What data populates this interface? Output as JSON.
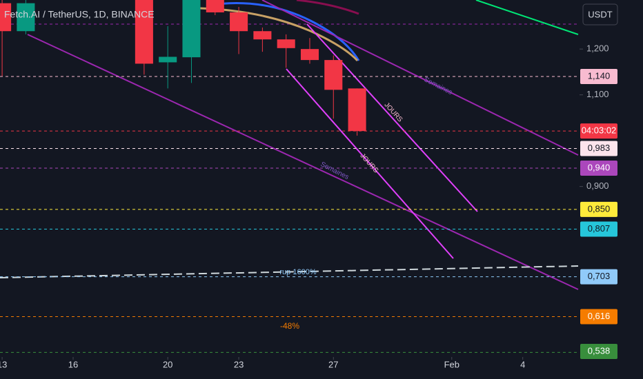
{
  "chart_data": {
    "type": "candlestick",
    "title": "Fetch.AI / TetherUS, 1D, BINANCE",
    "currency_button": "USDT",
    "up_color": "#089981",
    "down_color": "#f23645",
    "x": [
      0,
      1,
      6,
      7,
      8,
      9,
      10,
      11,
      12,
      13,
      14,
      15
    ],
    "open": [
      1.3,
      1.239,
      1.32,
      1.171,
      1.182,
      1.31,
      1.28,
      1.239,
      1.221,
      1.2,
      1.176,
      1.114
    ],
    "high": [
      1.32,
      1.32,
      1.33,
      1.25,
      1.33,
      1.32,
      1.292,
      1.247,
      1.232,
      1.224,
      1.186,
      1.114
    ],
    "low": [
      1.141,
      1.232,
      1.144,
      1.114,
      1.126,
      1.274,
      1.189,
      1.194,
      1.159,
      1.168,
      1.048,
      1.011
    ],
    "close": [
      1.239,
      1.3,
      1.168,
      1.183,
      1.31,
      1.28,
      1.239,
      1.221,
      1.202,
      1.176,
      1.111,
      1.021
    ],
    "xlim": [
      -0.09,
      24.4
    ],
    "xticks": [
      {
        "value": 0,
        "label": "13"
      },
      {
        "value": 3,
        "label": "16"
      },
      {
        "value": 7,
        "label": "20"
      },
      {
        "value": 10,
        "label": "23"
      },
      {
        "value": 14,
        "label": "27"
      },
      {
        "value": 19,
        "label": "Feb"
      },
      {
        "value": 22,
        "label": "4"
      }
    ],
    "ylim": [
      0.528,
      1.307
    ],
    "yticks": [
      {
        "value": 1.2,
        "label": "1,200"
      },
      {
        "value": 1.1,
        "label": "1,100"
      },
      {
        "value": 0.9,
        "label": "0,900"
      }
    ],
    "levels": [
      {
        "value": 1.14,
        "label": "1,140",
        "color": "#f8bbd0"
      },
      {
        "value": 1.021,
        "label": "04:03:02",
        "color": "#f23645"
      },
      {
        "value": 0.983,
        "label": "0,983",
        "color": "#fce4ec"
      },
      {
        "value": 0.94,
        "label": "0,940",
        "color": "#ab47bc"
      },
      {
        "value": 0.85,
        "label": "0,850",
        "color": "#ffeb3b"
      },
      {
        "value": 0.807,
        "label": "0,807",
        "color": "#26c6da"
      },
      {
        "value": 0.703,
        "label": "0,703",
        "color": "#90caf9"
      },
      {
        "value": 0.616,
        "label": "0,616",
        "color": "#f57c00"
      },
      {
        "value": 0.538,
        "label": "0,538",
        "color": "#388e3c"
      }
    ],
    "annotations": [
      "Semaines",
      "Semaines",
      "JOURS",
      "JOURS",
      "rup 1600%",
      "-48%"
    ]
  }
}
